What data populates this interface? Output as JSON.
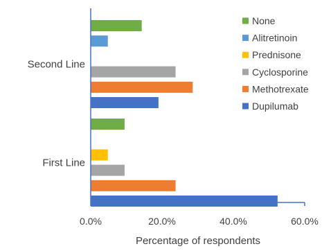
{
  "chart_data": {
    "type": "bar",
    "orientation": "horizontal",
    "title": "",
    "xlabel": "Percentage of respondents",
    "ylabel": "",
    "xlim": [
      0,
      60
    ],
    "x_ticks": [
      "0.0%",
      "20.0%",
      "40.0%",
      "60.0%"
    ],
    "categories": [
      "Second Line",
      "First Line"
    ],
    "series": [
      {
        "name": "None",
        "color": "#70AD47",
        "values": [
          14.3,
          9.5
        ]
      },
      {
        "name": "Alitretinoin",
        "color": "#5B9BD5",
        "values": [
          4.8,
          0
        ]
      },
      {
        "name": "Prednisone",
        "color": "#FFC000",
        "values": [
          0,
          4.8
        ]
      },
      {
        "name": "Cyclosporine",
        "color": "#A5A5A5",
        "values": [
          23.8,
          9.5
        ]
      },
      {
        "name": "Methotrexate",
        "color": "#ED7D31",
        "values": [
          28.6,
          23.8
        ]
      },
      {
        "name": "Dupilumab",
        "color": "#4472C4",
        "values": [
          19.0,
          52.4
        ]
      }
    ],
    "grid": false,
    "legend_position": "right"
  }
}
